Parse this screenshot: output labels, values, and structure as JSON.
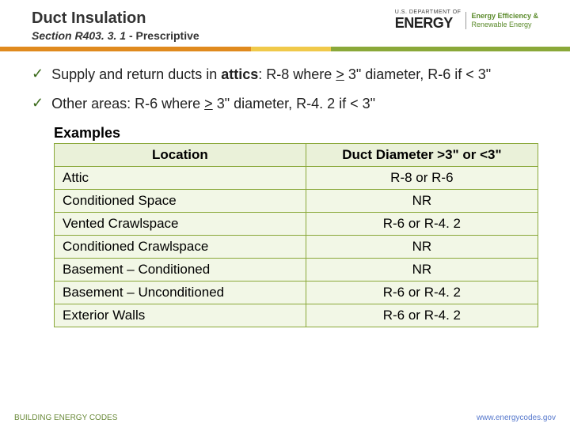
{
  "header": {
    "title": "Duct Insulation",
    "section_label": "Section R403. 3. 1",
    "section_suffix": " - Prescriptive",
    "logo": {
      "dept": "U.S. DEPARTMENT OF",
      "energy": "ENERGY",
      "sub1": "Energy Efficiency &",
      "sub2": "Renewable Energy"
    }
  },
  "accent_colors": {
    "orange": "#e08a1e",
    "yellow": "#f0c94a",
    "green": "#8aa839"
  },
  "bullets": [
    {
      "html": "Supply and return ducts in <b>attics</b>:  R-8 where <u>></u> 3\" diameter, R-6 if < 3\""
    },
    {
      "html": "Other areas:  R-6 where <u>></u> 3\" diameter, R-4. 2 if < 3\""
    }
  ],
  "examples": {
    "label": "Examples",
    "headers": [
      "Location",
      "Duct Diameter >3\" or <3\""
    ],
    "rows": [
      [
        "Attic",
        "R-8 or R-6"
      ],
      [
        "Conditioned Space",
        "NR"
      ],
      [
        "Vented Crawlspace",
        "R-6 or R-4. 2"
      ],
      [
        "Conditioned Crawlspace",
        "NR"
      ],
      [
        "Basement – Conditioned",
        "NR"
      ],
      [
        "Basement – Unconditioned",
        "R-6 or R-4. 2"
      ],
      [
        "Exterior Walls",
        "R-6 or R-4. 2"
      ]
    ],
    "cell_bg": "#f2f7e6",
    "border_color": "#8aa839"
  },
  "footer": {
    "left": "BUILDING ENERGY CODES",
    "right": "www.energycodes.gov"
  }
}
